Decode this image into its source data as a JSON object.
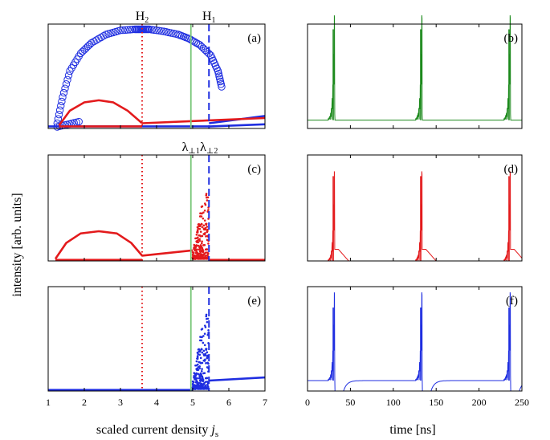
{
  "colors": {
    "red": "#e31a1c",
    "blue": "#1f2ee0",
    "green": "#1d8a1d",
    "light_green": "#7ac77a",
    "yellow_label": "#c9b400",
    "cyan_label": "#1aa8b8"
  },
  "chart_data": [
    {
      "type": "line",
      "panel": "a",
      "panel_label": "(a)",
      "xlim": [
        1,
        7
      ],
      "ylim": [
        0,
        1
      ],
      "xticks": [
        1,
        2,
        3,
        4,
        5,
        6,
        7
      ],
      "xtick_labels": [],
      "markers": [
        {
          "name": "H2",
          "label_main": "H",
          "label_sub": "2",
          "x": 3.6,
          "style": "dotted",
          "color": "red"
        },
        {
          "name": "H1",
          "label_main": "H",
          "label_sub": "1",
          "x": 5.45,
          "style": "dashed",
          "color": "blue"
        },
        {
          "name": "lambda_perp1",
          "x": 4.95,
          "style": "solid",
          "color": "light_green"
        }
      ],
      "series": [
        {
          "kind": "blue_upper_circles",
          "x": [
            1.25,
            1.4,
            1.6,
            1.9,
            2.2,
            2.6,
            3.0,
            3.4,
            3.6,
            3.8,
            4.2,
            4.6,
            4.9,
            5.2,
            5.5,
            5.7,
            5.8
          ],
          "y": [
            0.05,
            0.3,
            0.55,
            0.72,
            0.82,
            0.9,
            0.94,
            0.95,
            0.95,
            0.95,
            0.93,
            0.9,
            0.86,
            0.8,
            0.7,
            0.55,
            0.4
          ]
        },
        {
          "kind": "blue_baseline",
          "x": [
            1.0,
            5.5,
            7.0
          ],
          "y": [
            0.02,
            0.02,
            0.04
          ]
        },
        {
          "kind": "blue_branch",
          "x": [
            5.45,
            7.0
          ],
          "y": [
            0.05,
            0.12
          ]
        },
        {
          "kind": "red_loop_upper",
          "x": [
            1.3,
            1.6,
            2.0,
            2.4,
            2.8,
            3.2,
            3.6
          ],
          "y": [
            0.03,
            0.17,
            0.25,
            0.27,
            0.25,
            0.17,
            0.05
          ]
        },
        {
          "kind": "red_loop_lower",
          "x": [
            1.3,
            3.6
          ],
          "y": [
            0.02,
            0.02
          ]
        },
        {
          "kind": "red_line",
          "x": [
            3.6,
            7.0
          ],
          "y": [
            0.05,
            0.1
          ]
        }
      ]
    },
    {
      "type": "line",
      "panel": "b",
      "panel_label": "(b)",
      "xlim": [
        0,
        250
      ],
      "ylim": [
        0,
        1
      ],
      "xticks": [
        0,
        50,
        100,
        150,
        200,
        250
      ],
      "xtick_labels": [],
      "baseline": 0.08,
      "pulses": [
        30,
        132,
        235
      ],
      "pulse_peaks": [
        0.95,
        0.95,
        0.95
      ],
      "plateau": null,
      "color": "green"
    },
    {
      "type": "scatter",
      "panel": "c",
      "panel_label": "(c)",
      "xlim": [
        1,
        7
      ],
      "ylim": [
        0,
        1
      ],
      "xticks": [
        1,
        2,
        3,
        4,
        5,
        6,
        7
      ],
      "xtick_labels": [],
      "markers": [
        {
          "name": "lambda_perp1",
          "label_main": "λ",
          "label_sub": "⊥1",
          "x": 4.95,
          "style": "solid",
          "color": "light_green",
          "label_color": "yellow_label"
        },
        {
          "name": "lambda_perp2",
          "label_main": "λ",
          "label_sub": "⊥2",
          "x": 5.45,
          "style": "dashed",
          "color": "blue",
          "label_color": "cyan_label"
        },
        {
          "name": "H2",
          "x": 3.6,
          "style": "dotted",
          "color": "red"
        }
      ],
      "cloud": {
        "x_start": 5.0,
        "x_end": 5.45,
        "y_max": 0.62,
        "color": "red"
      },
      "series": [
        {
          "kind": "red_loop_upper",
          "x": [
            1.2,
            1.5,
            1.9,
            2.4,
            2.9,
            3.3,
            3.6
          ],
          "y": [
            0.02,
            0.17,
            0.26,
            0.28,
            0.26,
            0.17,
            0.05
          ]
        },
        {
          "kind": "red_loop_lower",
          "x": [
            1.2,
            3.6
          ],
          "y": [
            0.01,
            0.01
          ]
        },
        {
          "kind": "red_line",
          "x": [
            3.6,
            5.0
          ],
          "y": [
            0.05,
            0.1
          ]
        },
        {
          "kind": "red_baseline",
          "x": [
            5.45,
            7.0
          ],
          "y": [
            0.01,
            0.01
          ]
        }
      ]
    },
    {
      "type": "line",
      "panel": "d",
      "panel_label": "(d)",
      "xlim": [
        0,
        250
      ],
      "ylim": [
        0,
        1
      ],
      "xticks": [
        0,
        50,
        100,
        150,
        200,
        250
      ],
      "xtick_labels": [],
      "baseline": 0.0,
      "pulses": [
        30,
        132,
        235
      ],
      "pulse_peaks": [
        0.8,
        0.8,
        0.8
      ],
      "plateau": {
        "level": 0.11,
        "duration": 18
      },
      "color": "red"
    },
    {
      "type": "scatter",
      "panel": "e",
      "panel_label": "(e)",
      "xlim": [
        1,
        7
      ],
      "ylim": [
        0,
        1
      ],
      "xticks": [
        1,
        2,
        3,
        4,
        5,
        6,
        7
      ],
      "xtick_labels": [
        "1",
        "2",
        "3",
        "4",
        "5",
        "6",
        "7"
      ],
      "markers": [
        {
          "name": "lambda_perp1",
          "x": 4.95,
          "style": "solid",
          "color": "light_green"
        },
        {
          "name": "lambda_perp2",
          "x": 5.45,
          "style": "dashed",
          "color": "blue"
        },
        {
          "name": "H2",
          "x": 3.6,
          "style": "dotted",
          "color": "red"
        }
      ],
      "cloud": {
        "x_start": 5.0,
        "x_end": 5.45,
        "y_max": 0.72,
        "color": "blue"
      },
      "series": [
        {
          "kind": "blue_baseline",
          "x": [
            1.0,
            5.0
          ],
          "y": [
            0.01,
            0.01
          ]
        },
        {
          "kind": "blue_line",
          "x": [
            5.45,
            7.0
          ],
          "y": [
            0.1,
            0.13
          ]
        }
      ]
    },
    {
      "type": "line",
      "panel": "f",
      "panel_label": "(f)",
      "xlim": [
        0,
        250
      ],
      "ylim": [
        0,
        1
      ],
      "xticks": [
        0,
        50,
        100,
        150,
        200,
        250
      ],
      "xtick_labels": [
        "0",
        "50",
        "100",
        "150",
        "200",
        "250"
      ],
      "baseline": 0.1,
      "pulses": [
        30,
        132,
        235
      ],
      "pulse_peaks": [
        0.8,
        0.8,
        0.8
      ],
      "plateau": {
        "level": 0.1,
        "duration": 0
      },
      "recover": true,
      "color": "blue"
    }
  ],
  "ylabel": "intensity [arb. units]",
  "xlabel_left_main": "scaled current density ",
  "xlabel_left_var": "j",
  "xlabel_left_sub": "s",
  "xlabel_right": "time [ns]"
}
